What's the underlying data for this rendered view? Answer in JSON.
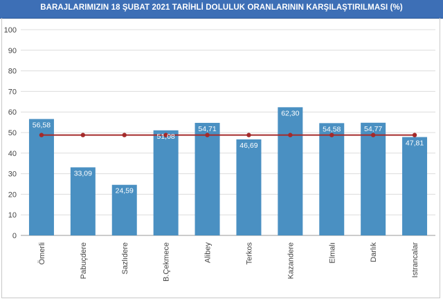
{
  "chart_data": {
    "type": "bar",
    "title": "BARAJLARIMIZIN 18 ŞUBAT 2021 TARİHLİ DOLULUK ORANLARININ KARŞILAŞTIRILMASI (%)",
    "categories": [
      "Ömerli",
      "Pabuçdere",
      "Sazlıdere",
      "B.Çekmece",
      "Alibey",
      "Terkos",
      "Kazandere",
      "Elmalı",
      "Darlık",
      "Istrancalar"
    ],
    "series": [
      {
        "type": "bar",
        "values": [
          56.58,
          33.09,
          24.59,
          51.08,
          54.71,
          46.69,
          62.3,
          54.58,
          54.77,
          47.81
        ],
        "value_labels": [
          "56,58",
          "33,09",
          "24,59",
          "51,08",
          "54,71",
          "46,69",
          "62,30",
          "54,58",
          "54,77",
          "47,81"
        ],
        "color": "#4a90c2"
      },
      {
        "type": "line",
        "values": [
          48.8,
          48.8,
          48.8,
          48.8,
          48.8,
          48.8,
          48.8,
          48.8,
          48.8,
          48.8
        ],
        "color": "#a52a2a"
      }
    ],
    "yticks": [
      "0",
      "10",
      "20",
      "30",
      "40",
      "50",
      "60",
      "70",
      "80",
      "90",
      "100"
    ],
    "ylim": [
      0,
      100
    ],
    "grid": true,
    "legend": "none",
    "xlabel": "",
    "ylabel": ""
  }
}
